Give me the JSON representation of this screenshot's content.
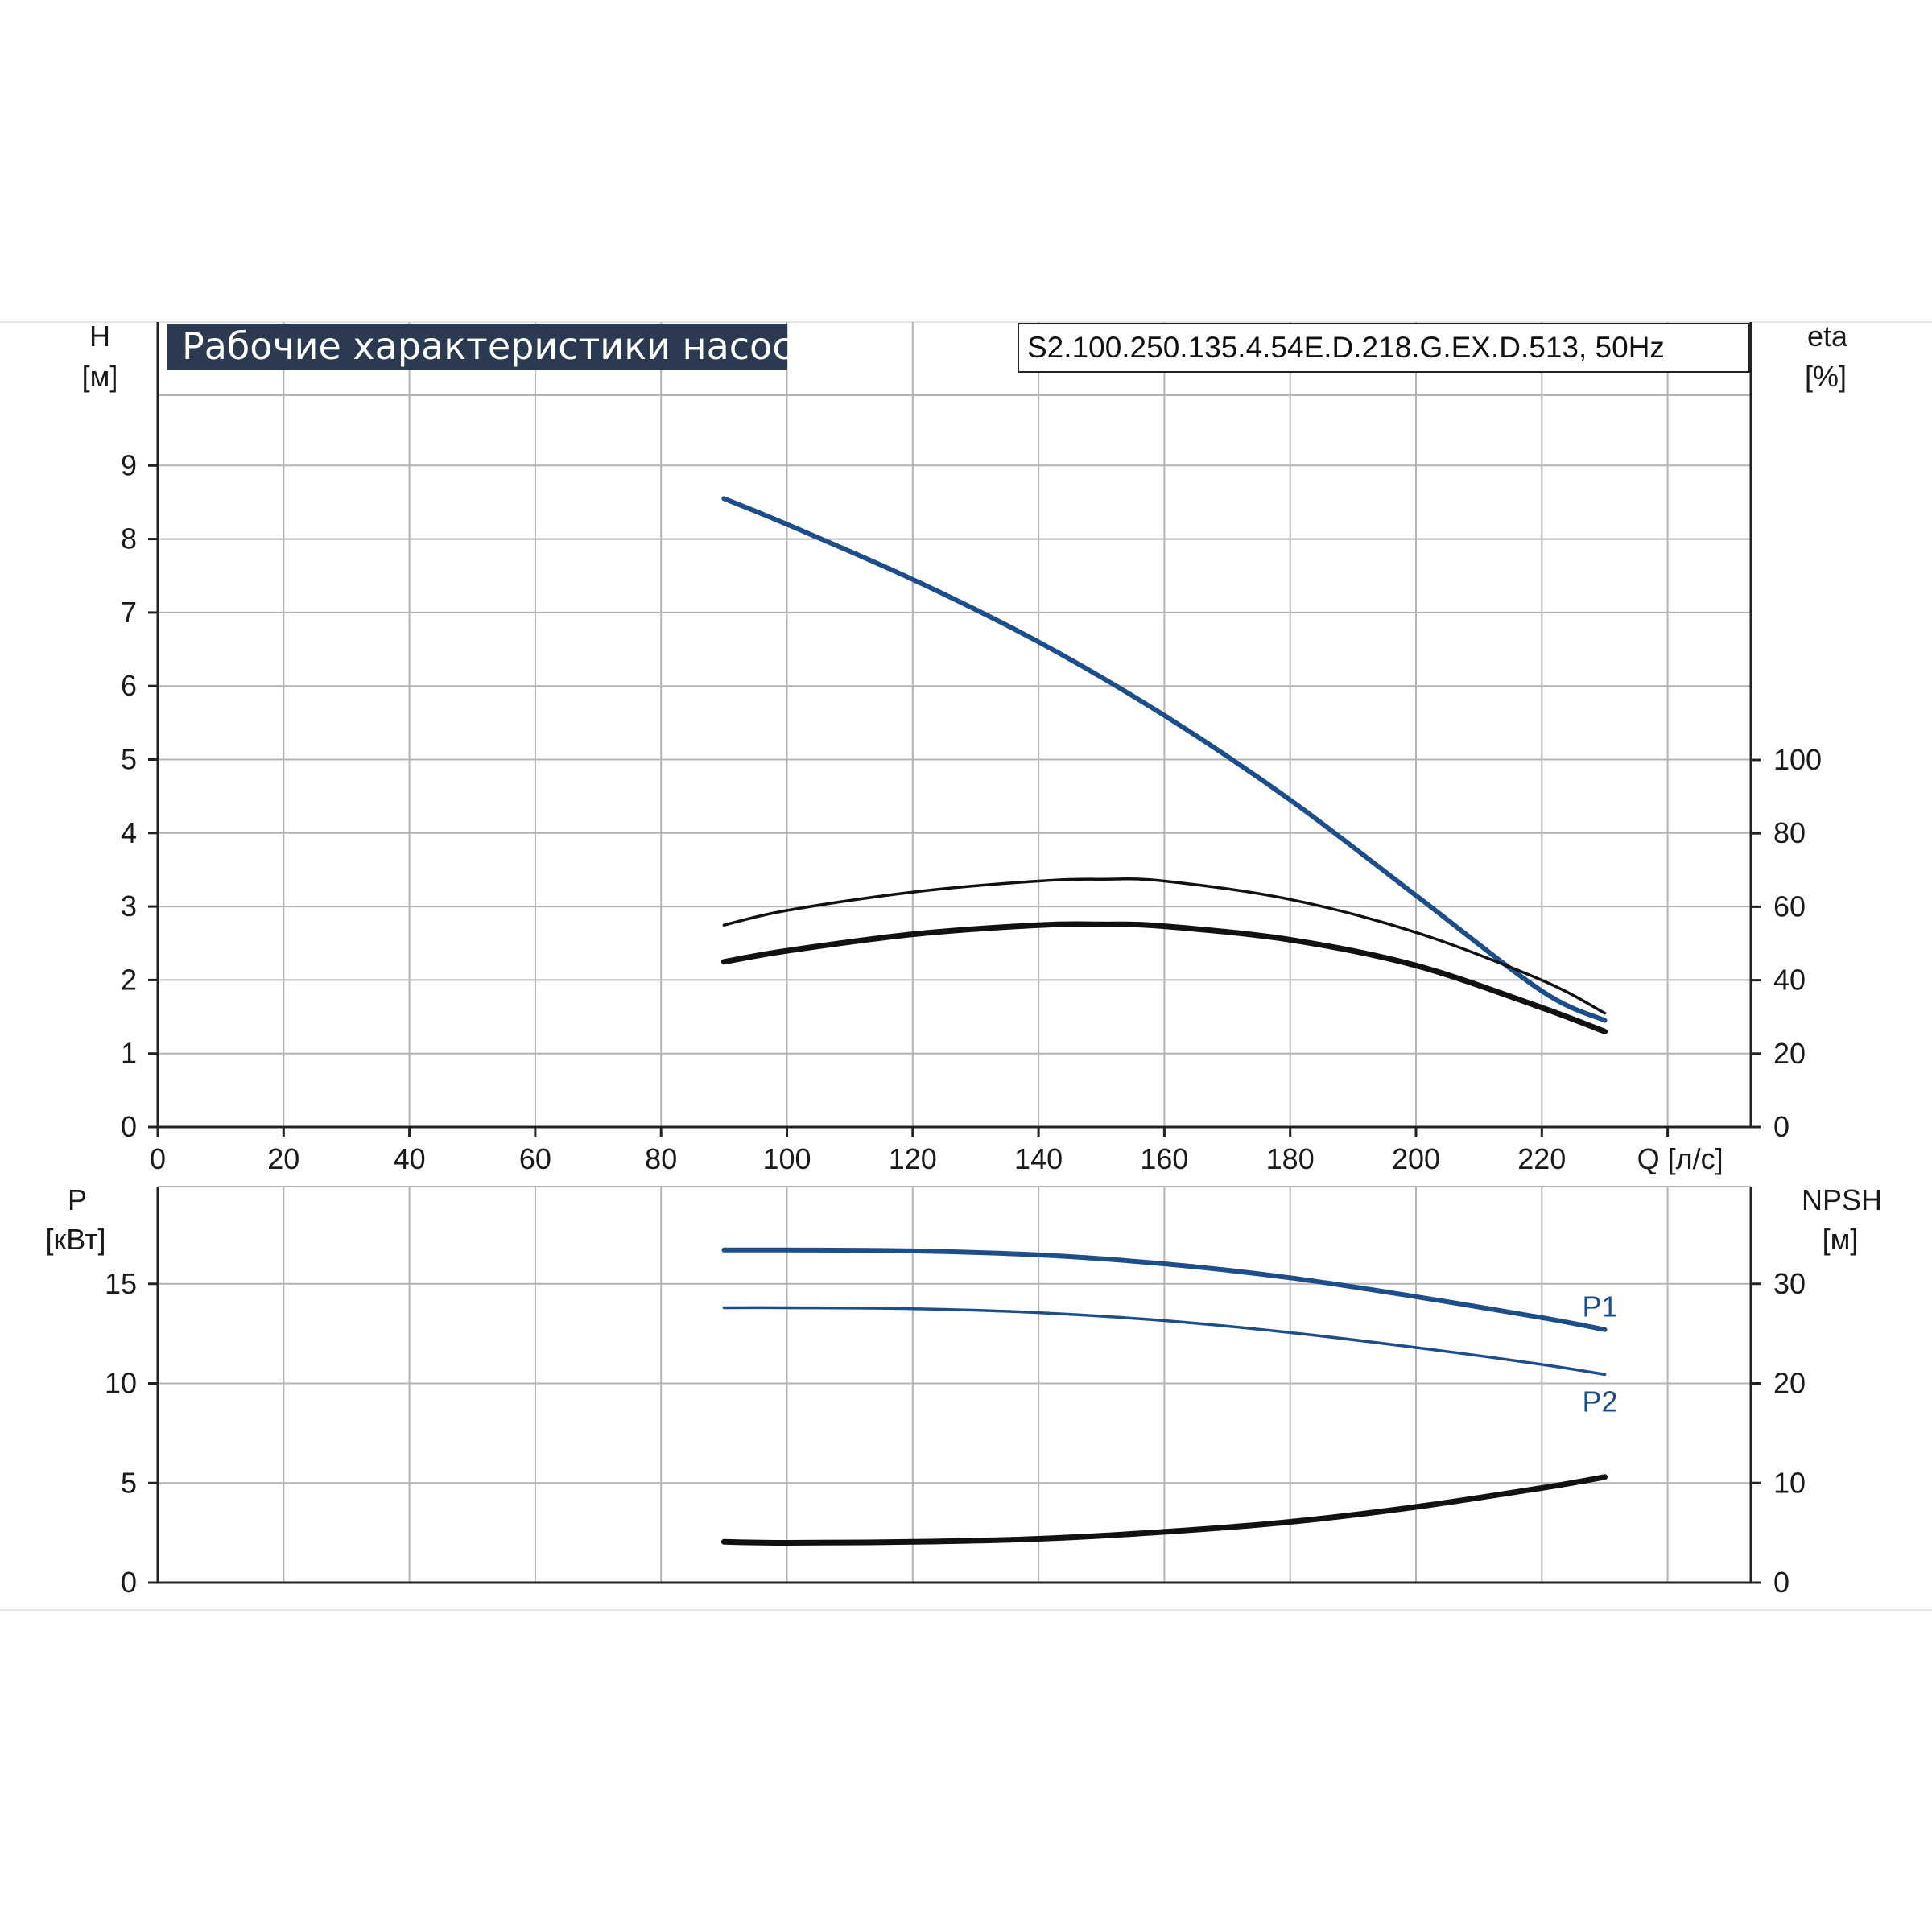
{
  "title": "Рабочие характеристики насоса",
  "model": "S2.100.250.135.4.54E.D.218.G.EX.D.513, 50Hz",
  "colors": {
    "blue": "#1d4e89",
    "black": "#111111",
    "grid": "#b4b4b4",
    "title_bg": "#2b3a50"
  },
  "chart_data": [
    {
      "type": "line",
      "name": "top",
      "xlabel": "Q [л/с]",
      "ylabel": "H",
      "ylabel_unit": "[м]",
      "y2label": "eta",
      "y2label_unit": "[%]",
      "xlim": [
        0,
        230
      ],
      "ylim": [
        0,
        9
      ],
      "y2lim": [
        0,
        100
      ],
      "x_ticks": [
        "0",
        "20",
        "40",
        "60",
        "80",
        "100",
        "120",
        "140",
        "160",
        "180",
        "200",
        "220"
      ],
      "y_ticks": [
        "0",
        "1",
        "2",
        "3",
        "4",
        "5",
        "6",
        "7",
        "8",
        "9"
      ],
      "y2_ticks": [
        "0",
        "20",
        "40",
        "60",
        "80",
        "100"
      ],
      "grid": true,
      "series": [
        {
          "id": "H",
          "axis": "left",
          "color": "blue",
          "width": 6,
          "x": [
            90,
            100,
            120,
            140,
            160,
            180,
            200,
            220,
            230
          ],
          "y": [
            8.55,
            8.2,
            7.45,
            6.6,
            5.6,
            4.45,
            3.15,
            1.85,
            1.45
          ]
        },
        {
          "id": "eta_pump",
          "axis": "right",
          "color": "black",
          "width": 3.5,
          "x": [
            90,
            100,
            120,
            140,
            150,
            160,
            180,
            200,
            220,
            230
          ],
          "y": [
            55,
            59,
            64,
            67,
            67.5,
            67,
            62,
            53,
            40,
            31
          ]
        },
        {
          "id": "eta_total",
          "axis": "right",
          "color": "black",
          "width": 7,
          "x": [
            90,
            100,
            120,
            140,
            150,
            160,
            180,
            200,
            220,
            230
          ],
          "y": [
            45,
            48,
            52.5,
            55,
            55.2,
            54.7,
            51,
            44,
            32.5,
            26
          ]
        }
      ]
    },
    {
      "type": "line",
      "name": "bottom",
      "ylabel": "P",
      "ylabel_unit": "[кВт]",
      "y2label": "NPSH",
      "y2label_unit": "[м]",
      "xlim": [
        0,
        230
      ],
      "ylim": [
        0,
        20
      ],
      "y2lim": [
        0,
        40
      ],
      "y_ticks": [
        "0",
        "5",
        "10",
        "15"
      ],
      "y2_ticks": [
        "0",
        "10",
        "20",
        "30"
      ],
      "grid": true,
      "series": [
        {
          "id": "P1",
          "name": "P1",
          "axis": "left",
          "color": "blue",
          "width": 6,
          "x": [
            90,
            100,
            120,
            140,
            160,
            180,
            200,
            220,
            230
          ],
          "y": [
            16.7,
            16.7,
            16.65,
            16.45,
            16.0,
            15.3,
            14.35,
            13.3,
            12.7
          ]
        },
        {
          "id": "P2",
          "name": "P2",
          "axis": "left",
          "color": "blue",
          "width": 3.5,
          "x": [
            90,
            100,
            120,
            140,
            160,
            180,
            200,
            220,
            230
          ],
          "y": [
            13.8,
            13.8,
            13.75,
            13.55,
            13.15,
            12.55,
            11.8,
            10.95,
            10.45
          ]
        },
        {
          "id": "NPSH",
          "axis": "right",
          "color": "black",
          "width": 7,
          "x": [
            90,
            100,
            120,
            140,
            160,
            180,
            200,
            220,
            230
          ],
          "y": [
            4.1,
            4.0,
            4.1,
            4.4,
            5.1,
            6.1,
            7.6,
            9.5,
            10.6
          ]
        }
      ]
    }
  ]
}
